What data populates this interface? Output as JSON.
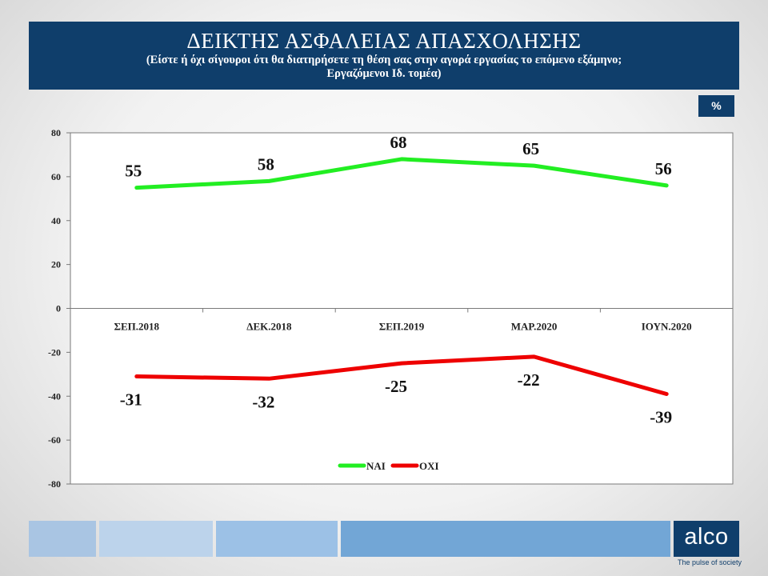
{
  "header": {
    "title": "ΔΕΙΚΤΗΣ ΑΣΦΑΛΕΙΑΣ ΑΠΑΣΧΟΛΗΣΗΣ",
    "subtitle_line1": "(Είστε ή όχι σίγουροι ότι θα διατηρήσετε τη θέση σας στην αγορά εργασίας το επόμενο εξάμηνο;",
    "subtitle_line2": "Εργαζόμενοι Ιδ. τομέα)"
  },
  "unit_badge": "%",
  "chart_data": {
    "type": "line",
    "categories": [
      "ΣΕΠ.2018",
      "ΔΕΚ.2018",
      "ΣΕΠ.2019",
      "ΜΑΡ.2020",
      "ΙΟΥΝ.2020"
    ],
    "series": [
      {
        "name": "ΝΑΙ",
        "values": [
          55,
          58,
          68,
          65,
          56
        ],
        "color": "#22ee22"
      },
      {
        "name": "ΟΧΙ",
        "values": [
          -31,
          -32,
          -25,
          -22,
          -39
        ],
        "color": "#ee0000"
      }
    ],
    "ylim": [
      -80,
      80
    ],
    "yticks": [
      80,
      60,
      40,
      20,
      0,
      -20,
      -40,
      -60,
      -80
    ],
    "legend_position": "bottom",
    "grid": false
  },
  "logo": {
    "name": "alco",
    "tagline": "The pulse of society",
    "color": "#0f3e6b"
  }
}
